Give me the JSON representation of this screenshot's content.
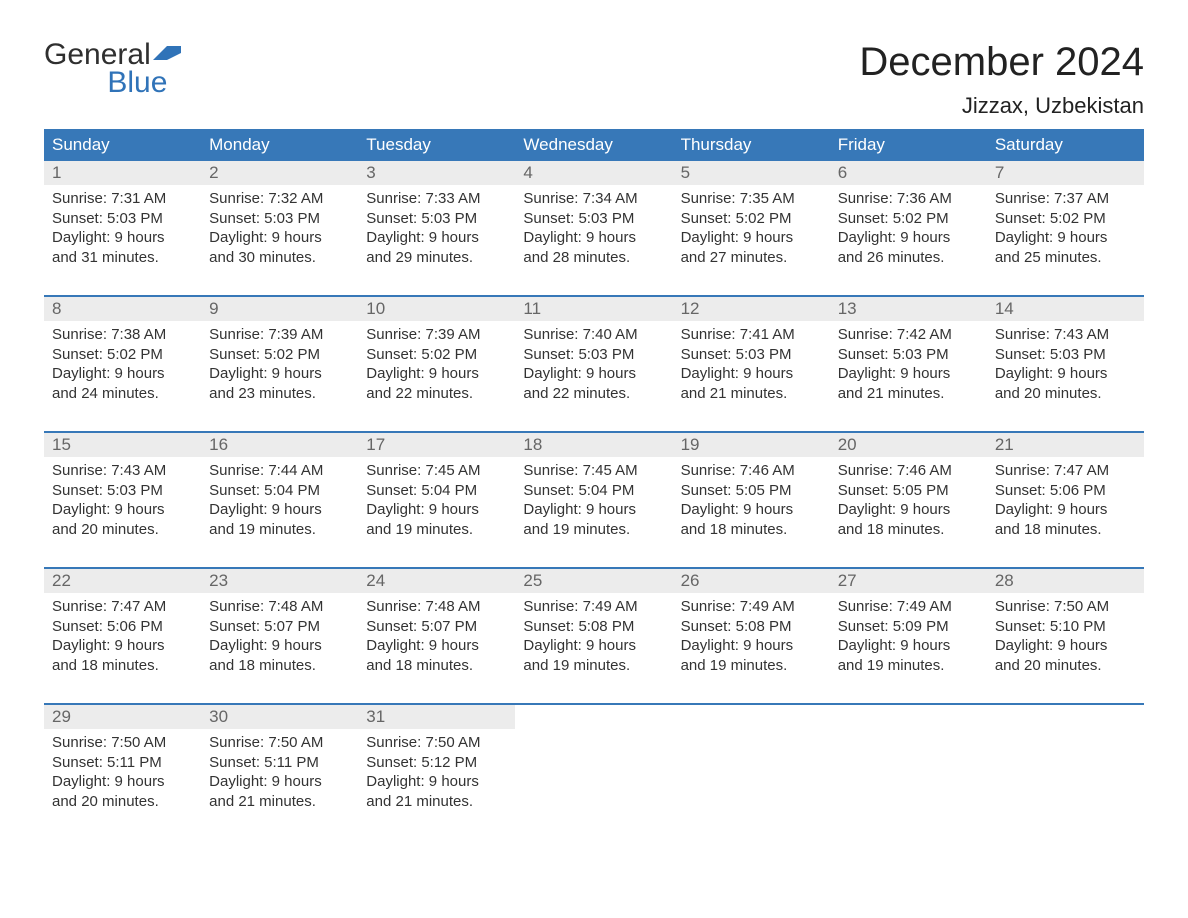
{
  "colors": {
    "header_bg": "#3778b8",
    "header_text": "#ffffff",
    "daynum_bg": "#ececec",
    "daynum_text": "#666666",
    "body_text": "#333333",
    "accent_border": "#3778b8",
    "logo_gray": "#2f2f2f",
    "logo_blue": "#3073b8",
    "page_bg": "#ffffff"
  },
  "logo": {
    "line1": "General",
    "line2": "Blue"
  },
  "title": "December 2024",
  "location": "Jizzax, Uzbekistan",
  "day_headers": [
    "Sunday",
    "Monday",
    "Tuesday",
    "Wednesday",
    "Thursday",
    "Friday",
    "Saturday"
  ],
  "labels": {
    "sunrise": "Sunrise:",
    "sunset": "Sunset:",
    "daylight_pre": "Daylight:",
    "daylight_hours": "hours",
    "daylight_and": "and",
    "daylight_minutes": "minutes."
  },
  "weeks": [
    [
      {
        "day": "1",
        "sunrise": "7:31 AM",
        "sunset": "5:03 PM",
        "dl_h": "9",
        "dl_m": "31"
      },
      {
        "day": "2",
        "sunrise": "7:32 AM",
        "sunset": "5:03 PM",
        "dl_h": "9",
        "dl_m": "30"
      },
      {
        "day": "3",
        "sunrise": "7:33 AM",
        "sunset": "5:03 PM",
        "dl_h": "9",
        "dl_m": "29"
      },
      {
        "day": "4",
        "sunrise": "7:34 AM",
        "sunset": "5:03 PM",
        "dl_h": "9",
        "dl_m": "28"
      },
      {
        "day": "5",
        "sunrise": "7:35 AM",
        "sunset": "5:02 PM",
        "dl_h": "9",
        "dl_m": "27"
      },
      {
        "day": "6",
        "sunrise": "7:36 AM",
        "sunset": "5:02 PM",
        "dl_h": "9",
        "dl_m": "26"
      },
      {
        "day": "7",
        "sunrise": "7:37 AM",
        "sunset": "5:02 PM",
        "dl_h": "9",
        "dl_m": "25"
      }
    ],
    [
      {
        "day": "8",
        "sunrise": "7:38 AM",
        "sunset": "5:02 PM",
        "dl_h": "9",
        "dl_m": "24"
      },
      {
        "day": "9",
        "sunrise": "7:39 AM",
        "sunset": "5:02 PM",
        "dl_h": "9",
        "dl_m": "23"
      },
      {
        "day": "10",
        "sunrise": "7:39 AM",
        "sunset": "5:02 PM",
        "dl_h": "9",
        "dl_m": "22"
      },
      {
        "day": "11",
        "sunrise": "7:40 AM",
        "sunset": "5:03 PM",
        "dl_h": "9",
        "dl_m": "22"
      },
      {
        "day": "12",
        "sunrise": "7:41 AM",
        "sunset": "5:03 PM",
        "dl_h": "9",
        "dl_m": "21"
      },
      {
        "day": "13",
        "sunrise": "7:42 AM",
        "sunset": "5:03 PM",
        "dl_h": "9",
        "dl_m": "21"
      },
      {
        "day": "14",
        "sunrise": "7:43 AM",
        "sunset": "5:03 PM",
        "dl_h": "9",
        "dl_m": "20"
      }
    ],
    [
      {
        "day": "15",
        "sunrise": "7:43 AM",
        "sunset": "5:03 PM",
        "dl_h": "9",
        "dl_m": "20"
      },
      {
        "day": "16",
        "sunrise": "7:44 AM",
        "sunset": "5:04 PM",
        "dl_h": "9",
        "dl_m": "19"
      },
      {
        "day": "17",
        "sunrise": "7:45 AM",
        "sunset": "5:04 PM",
        "dl_h": "9",
        "dl_m": "19"
      },
      {
        "day": "18",
        "sunrise": "7:45 AM",
        "sunset": "5:04 PM",
        "dl_h": "9",
        "dl_m": "19"
      },
      {
        "day": "19",
        "sunrise": "7:46 AM",
        "sunset": "5:05 PM",
        "dl_h": "9",
        "dl_m": "18"
      },
      {
        "day": "20",
        "sunrise": "7:46 AM",
        "sunset": "5:05 PM",
        "dl_h": "9",
        "dl_m": "18"
      },
      {
        "day": "21",
        "sunrise": "7:47 AM",
        "sunset": "5:06 PM",
        "dl_h": "9",
        "dl_m": "18"
      }
    ],
    [
      {
        "day": "22",
        "sunrise": "7:47 AM",
        "sunset": "5:06 PM",
        "dl_h": "9",
        "dl_m": "18"
      },
      {
        "day": "23",
        "sunrise": "7:48 AM",
        "sunset": "5:07 PM",
        "dl_h": "9",
        "dl_m": "18"
      },
      {
        "day": "24",
        "sunrise": "7:48 AM",
        "sunset": "5:07 PM",
        "dl_h": "9",
        "dl_m": "18"
      },
      {
        "day": "25",
        "sunrise": "7:49 AM",
        "sunset": "5:08 PM",
        "dl_h": "9",
        "dl_m": "19"
      },
      {
        "day": "26",
        "sunrise": "7:49 AM",
        "sunset": "5:08 PM",
        "dl_h": "9",
        "dl_m": "19"
      },
      {
        "day": "27",
        "sunrise": "7:49 AM",
        "sunset": "5:09 PM",
        "dl_h": "9",
        "dl_m": "19"
      },
      {
        "day": "28",
        "sunrise": "7:50 AM",
        "sunset": "5:10 PM",
        "dl_h": "9",
        "dl_m": "20"
      }
    ],
    [
      {
        "day": "29",
        "sunrise": "7:50 AM",
        "sunset": "5:11 PM",
        "dl_h": "9",
        "dl_m": "20"
      },
      {
        "day": "30",
        "sunrise": "7:50 AM",
        "sunset": "5:11 PM",
        "dl_h": "9",
        "dl_m": "21"
      },
      {
        "day": "31",
        "sunrise": "7:50 AM",
        "sunset": "5:12 PM",
        "dl_h": "9",
        "dl_m": "21"
      },
      null,
      null,
      null,
      null
    ]
  ]
}
